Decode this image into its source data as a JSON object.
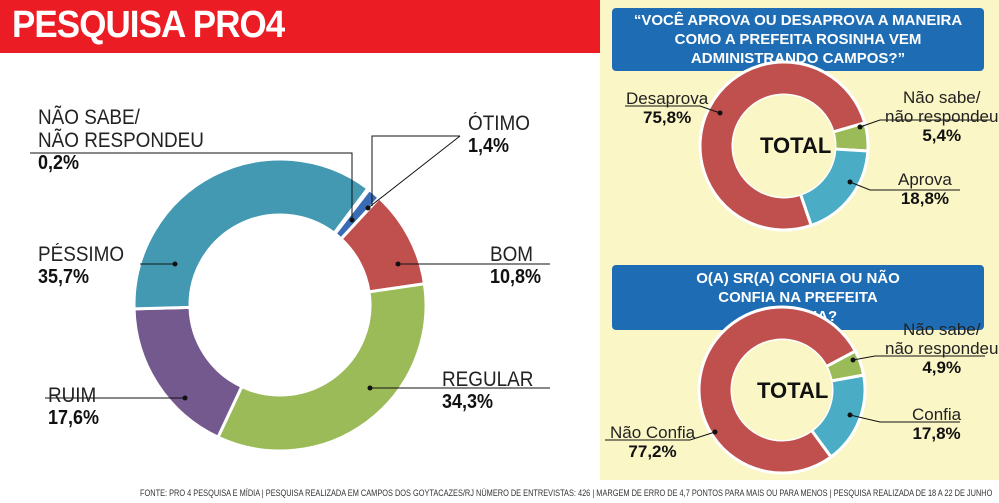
{
  "header": {
    "title": "PESQUISA PRO4"
  },
  "colors": {
    "header_red": "#ec1c24",
    "panel_bg": "#fbf6c6",
    "question_blue": "#1e6db4"
  },
  "chart_data": [
    {
      "type": "pie",
      "title": "",
      "slices": [
        {
          "label": "NÃO SABE/ NÃO RESPONDEU",
          "label_line1": "NÃO SABE/",
          "label_line2": "NÃO RESPONDEU",
          "value": 0.2,
          "display": "0,2%",
          "color": "#4a9ab3"
        },
        {
          "label": "ÓTIMO",
          "value": 1.4,
          "display": "1,4%",
          "color": "#3a6cb5"
        },
        {
          "label": "BOM",
          "value": 10.8,
          "display": "10,8%",
          "color": "#c0504d"
        },
        {
          "label": "REGULAR",
          "value": 34.3,
          "display": "34,3%",
          "color": "#9bbb59"
        },
        {
          "label": "RUIM",
          "value": 17.6,
          "display": "17,6%",
          "color": "#74598f"
        },
        {
          "label": "PÉSSIMO",
          "value": 35.7,
          "display": "35,7%",
          "color": "#4499b2"
        }
      ]
    },
    {
      "type": "pie",
      "title": "“VOCÊ APROVA OU DESAPROVA A MANEIRA COMO A PREFEITA ROSINHA VEM ADMINISTRANDO CAMPOS?”",
      "center_label": "TOTAL",
      "slices": [
        {
          "label": "Não sabe/ não respondeu",
          "label_line1": "Não sabe/",
          "label_line2": "não respondeu",
          "value": 5.4,
          "display": "5,4%",
          "color": "#9bbb59"
        },
        {
          "label": "Aprova",
          "value": 18.8,
          "display": "18,8%",
          "color": "#4bacc6"
        },
        {
          "label": "Desaprova",
          "value": 75.8,
          "display": "75,8%",
          "color": "#c0504d"
        }
      ]
    },
    {
      "type": "pie",
      "title": "O(A) SR(A) CONFIA OU NÃO CONFIA NA PREFEITA ROSINHA?",
      "center_label": "TOTAL",
      "slices": [
        {
          "label": "Não sabe/ não respondeu",
          "label_line1": "Não sabe/",
          "label_line2": "não respondeu",
          "value": 4.9,
          "display": "4,9%",
          "color": "#9bbb59"
        },
        {
          "label": "Confia",
          "value": 17.8,
          "display": "17,8%",
          "color": "#4bacc6"
        },
        {
          "label": "Não Confia",
          "value": 77.2,
          "display": "77,2%",
          "color": "#c0504d"
        }
      ]
    }
  ],
  "footer": "FONTE: PRO 4 PESQUISA E MÍDIA | PESQUISA REALIZADA EM CAMPOS DOS GOYTACAZES/RJ NÚMERO DE ENTREVISTAS: 426 | MARGEM DE ERRO DE 4,7 PONTOS PARA MAIS OU PARA MENOS | PESQUISA REALIZADA DE  18 A 22 DE JUNHO"
}
